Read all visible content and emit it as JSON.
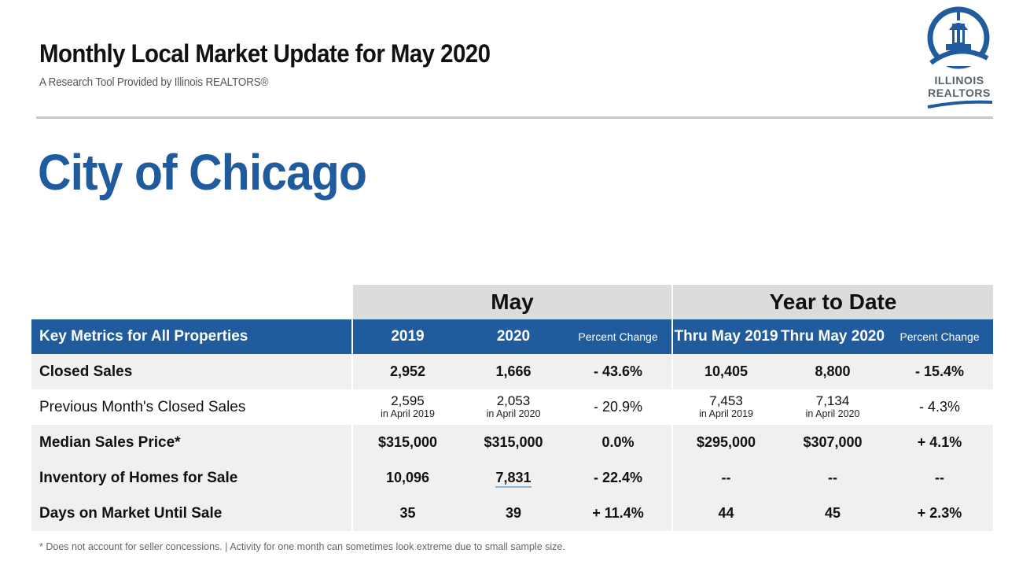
{
  "header": {
    "title": "Monthly Local Market Update for May 2020",
    "subtitle": "A Research Tool Provided by Illinois REALTORS®"
  },
  "logo": {
    "line1": "ILLINOIS",
    "line2": "REALTORS",
    "color": "#1f5b9d"
  },
  "city": "City of Chicago",
  "table": {
    "group_may": "May",
    "group_ytd": "Year to Date",
    "headers": {
      "metric": "Key Metrics for All Properties",
      "c2019": "2019",
      "c2020": "2020",
      "pc_may": "Percent Change",
      "thru2019": "Thru May 2019",
      "thru2020": "Thru May 2020",
      "pc_ytd": "Percent Change"
    },
    "rows": [
      {
        "label": "Closed Sales",
        "may2019": "2,952",
        "may2020": "1,666",
        "may_pc": "- 43.6%",
        "ytd2019": "10,405",
        "ytd2020": "8,800",
        "ytd_pc": "- 15.4%"
      },
      {
        "label": "Previous Month's Closed Sales",
        "may2019": "2,595",
        "may2019_sub": "in April 2019",
        "may2020": "2,053",
        "may2020_sub": "in April 2020",
        "may_pc": "- 20.9%",
        "ytd2019": "7,453",
        "ytd2019_sub": "in April 2019",
        "ytd2020": "7,134",
        "ytd2020_sub": "in April 2020",
        "ytd_pc": "- 4.3%"
      },
      {
        "label": "Median Sales Price*",
        "may2019": "$315,000",
        "may2020": "$315,000",
        "may_pc": "0.0%",
        "ytd2019": "$295,000",
        "ytd2020": "$307,000",
        "ytd_pc": "+ 4.1%"
      },
      {
        "label": "Inventory of Homes for Sale",
        "may2019": "10,096",
        "may2020": "7,831",
        "may_pc": "- 22.4%",
        "ytd2019": "--",
        "ytd2020": "--",
        "ytd_pc": "--"
      },
      {
        "label": "Days on Market Until Sale",
        "may2019": "35",
        "may2020": "39",
        "may_pc": "+ 11.4%",
        "ytd2019": "44",
        "ytd2020": "45",
        "ytd_pc": "+ 2.3%"
      }
    ]
  },
  "footnote": "* Does not account for seller concessions.  |  Activity for one month can sometimes look extreme due to small sample size.",
  "colors": {
    "brand_blue": "#1f5b9d",
    "group_header_gray": "#dcdcdc",
    "row_shade": "#f0f0f0"
  }
}
